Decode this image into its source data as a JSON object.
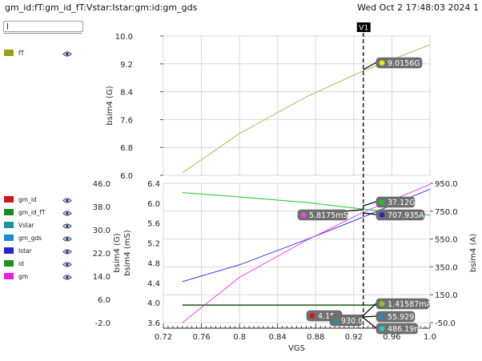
{
  "window": {
    "title": "gm_id:fT:gm_id_fT:Vstar:Istar:gm:id:gm_gds",
    "datetime": "Wed Oct 2 17:48:03 2024  1"
  },
  "search": {
    "value": ""
  },
  "legend_top": [
    {
      "name": "fT",
      "color": "#9a9a1e"
    }
  ],
  "legend_bottom": [
    {
      "name": "gm_id",
      "color": "#d11616"
    },
    {
      "name": "gm_id_fT",
      "color": "#1d8a1d"
    },
    {
      "name": "Vstar",
      "color": "#1a9898"
    },
    {
      "name": "gm_gds",
      "color": "#1e88d0"
    },
    {
      "name": "Istar",
      "color": "#2626c8"
    },
    {
      "name": "id",
      "color": "#1e8e1e"
    },
    {
      "name": "gm",
      "color": "#e51ee5"
    }
  ],
  "icons": {
    "visibility": "eye-icon"
  },
  "chart_data": [
    {
      "type": "line",
      "panel": "top",
      "ylabel": "bsim4 (G)",
      "ylim": [
        6.0,
        10.0
      ],
      "yticks": [
        "10.0",
        "9.2",
        "8.4",
        "7.6",
        "6.8",
        "6.0"
      ],
      "series": [
        {
          "name": "fT",
          "color": "#b7b75a",
          "x": [
            0.74,
            0.8,
            0.87,
            0.93,
            1.0
          ],
          "y": [
            6.07,
            7.2,
            8.25,
            9.0,
            9.75
          ]
        }
      ]
    },
    {
      "type": "line",
      "panel": "bottom",
      "xlabel": "VGS",
      "xlim": [
        0.72,
        1.0
      ],
      "xticks": [
        "0.72",
        "0.76",
        "0.8",
        "0.84",
        "0.88",
        "0.92",
        "0.96",
        "1.0"
      ],
      "axes": {
        "left_outer": {
          "label": "bsim4 (G)",
          "range": [
            -2.0,
            46.0
          ],
          "ticks": [
            "46.0",
            "38.0",
            "30.0",
            "22.0",
            "14.0",
            "6.0",
            "-2.0"
          ]
        },
        "left_inner": {
          "label": "bsim4 (mS)",
          "range": [
            3.6,
            6.4
          ],
          "ticks": [
            "6.4",
            "6.0",
            "5.6",
            "5.2",
            "4.8",
            "4.4",
            "4.0",
            "3.6"
          ]
        },
        "right": {
          "label": "bsim4 (A)",
          "range": [
            -50.0,
            950.0
          ],
          "ticks": [
            "950.0",
            "750.0",
            "550.0",
            "350.0",
            "150.0",
            "-50.0"
          ]
        }
      },
      "series": [
        {
          "name": "gm_id_fT",
          "color": "#22c322",
          "axis": "left_outer",
          "x": [
            0.74,
            0.8,
            0.87,
            0.93,
            1.0
          ],
          "y": [
            42.8,
            41.3,
            39.4,
            37.1,
            35.0
          ]
        },
        {
          "name": "Istar",
          "color": "#3a3ad8",
          "axis": "right",
          "x": [
            0.74,
            0.8,
            0.87,
            0.93,
            1.0
          ],
          "y": [
            244,
            365,
            545,
            708,
            908
          ]
        },
        {
          "name": "gm",
          "color": "#ee44ee",
          "axis": "left_inner",
          "x": [
            0.74,
            0.8,
            0.87,
            0.93,
            1.0
          ],
          "y": [
            3.6,
            4.51,
            5.25,
            5.82,
            6.38
          ]
        },
        {
          "name": "gm_id",
          "color": "#d11616",
          "axis": "left_outer",
          "x": [
            0.74,
            1.0
          ],
          "y": [
            4.15,
            4.15
          ]
        },
        {
          "name": "Vstar",
          "color": "#1a9898",
          "axis": "left_outer",
          "x": [
            0.74,
            1.0
          ],
          "y": [
            4.0,
            4.0
          ]
        },
        {
          "name": "gm_gds",
          "color": "#1e88d0",
          "axis": "left_outer",
          "x": [
            0.74,
            1.0
          ],
          "y": [
            3.95,
            3.95
          ]
        },
        {
          "name": "id",
          "color": "#1e8e1e",
          "axis": "left_outer",
          "x": [
            0.74,
            1.0
          ],
          "y": [
            3.9,
            3.9
          ]
        }
      ]
    }
  ],
  "cursor": {
    "label": "V1",
    "x": 0.93,
    "readouts": [
      {
        "text": "9.0156G",
        "color": "#e8e81a"
      },
      {
        "text": "37.12G",
        "color": "#22c322"
      },
      {
        "text": "5.8175mS",
        "color": "#ee44ee"
      },
      {
        "text": "707.935A",
        "color": "#2626c8"
      },
      {
        "text": "1.41587mA",
        "color": "#88cc22"
      },
      {
        "text": "4.15",
        "color": "#d11616"
      },
      {
        "text": "930.0m",
        "color": "#1a9898"
      },
      {
        "text": "55.929",
        "color": "#1e88d0"
      },
      {
        "text": "486.19m",
        "color": "#22cccc"
      }
    ]
  }
}
